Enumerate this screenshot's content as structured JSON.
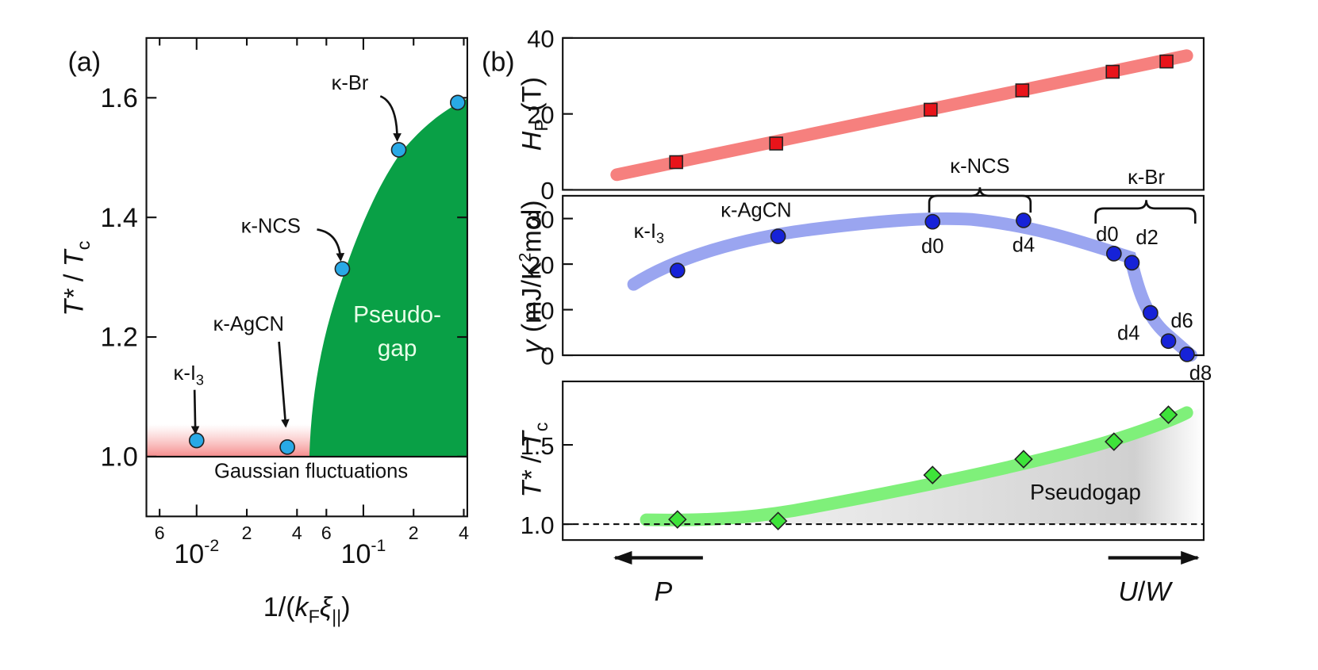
{
  "chart_data": [
    {
      "type": "scatter",
      "panel": "(a)",
      "xlog": true,
      "xlim": [
        0.005,
        0.42
      ],
      "ylim": [
        0.9,
        1.7
      ],
      "xticks": [
        {
          "value": 0.006,
          "label": "6"
        },
        {
          "value": 0.01,
          "label": "10",
          "sup": "-2"
        },
        {
          "value": 0.02,
          "label": "2"
        },
        {
          "value": 0.04,
          "label": "4"
        },
        {
          "value": 0.06,
          "label": "6"
        },
        {
          "value": 0.1,
          "label": "10",
          "sup": "-1"
        },
        {
          "value": 0.2,
          "label": "2"
        },
        {
          "value": 0.4,
          "label": "4"
        }
      ],
      "yticks": [
        {
          "value": 1,
          "label": "1.0"
        },
        1.2,
        1.4,
        1.6
      ],
      "x": [
        0.01,
        0.035,
        0.0748,
        0.163,
        0.368
      ],
      "values": [
        1.027,
        1.016,
        1.314,
        1.513,
        1.592
      ],
      "color": "#29a9e6",
      "marker": "circle",
      "refline": "solid",
      "xlabel": [
        "1/(",
        "k",
        "F",
        "ξ",
        "||",
        ")"
      ],
      "ylabel": [
        "T*",
        " / ",
        "T",
        "c"
      ],
      "annotations": [
        {
          "text": "κ-I",
          "sub": "3"
        },
        {
          "text": "κ-AgCN"
        },
        {
          "text": "κ-NCS"
        },
        {
          "text": "κ-Br"
        }
      ],
      "region_label": [
        "Pseudo-",
        "gap"
      ],
      "band_label": "Gaussian fluctuations"
    },
    {
      "type": "scatter",
      "panel": "(b)",
      "xlim": [
        0,
        100
      ],
      "ylim": [
        0,
        40
      ],
      "yticks": [
        0,
        20,
        40
      ],
      "x": [
        17.7,
        33.3,
        57.4,
        71.7,
        85.8,
        94.2
      ],
      "values": [
        7.3,
        12.2,
        21.1,
        26.2,
        31.1,
        33.8
      ],
      "color": "#e8141a",
      "marker": "square",
      "ylabel": [
        "H",
        "P",
        " (T)"
      ]
    },
    {
      "type": "scatter",
      "xlim": [
        0,
        100
      ],
      "ylim": [
        0,
        35
      ],
      "yticks": [
        0,
        10,
        20,
        30
      ],
      "x": [
        17.9,
        33.6,
        57.7,
        71.9,
        86.0,
        88.8,
        91.7,
        94.5,
        97.4
      ],
      "values": [
        18.6,
        26.1,
        29.3,
        29.6,
        22.3,
        20.3,
        9.3,
        3.1,
        0.2
      ],
      "point_labels": [
        null,
        null,
        "d0",
        "d4",
        "d0",
        "d2",
        "d4",
        "d6",
        "d8"
      ],
      "color": "#1622d8",
      "marker": "circle",
      "ylabel": [
        "γ",
        " (mJ/K",
        "2",
        "mol)"
      ],
      "groups": [
        {
          "text": "κ-I",
          "sub": "3"
        },
        {
          "text": "κ-AgCN"
        },
        {
          "text": "κ-NCS"
        },
        {
          "text": "κ-Br"
        }
      ]
    },
    {
      "type": "scatter",
      "xlim": [
        0,
        100
      ],
      "ylim": [
        0.9,
        1.9
      ],
      "yticks": [
        {
          "value": 1,
          "label": "1.0"
        },
        1.5
      ],
      "x": [
        17.9,
        33.6,
        57.7,
        71.9,
        86.0,
        94.5
      ],
      "values": [
        1.03,
        1.02,
        1.31,
        1.41,
        1.52,
        1.69
      ],
      "color": "#3ee33a",
      "marker": "diamond",
      "refline": "dashed",
      "ylabel": [
        "T*",
        " / ",
        "T",
        "c"
      ],
      "region_label": "Pseudogap",
      "arrows": [
        "P",
        "U",
        "/",
        "W"
      ]
    }
  ]
}
